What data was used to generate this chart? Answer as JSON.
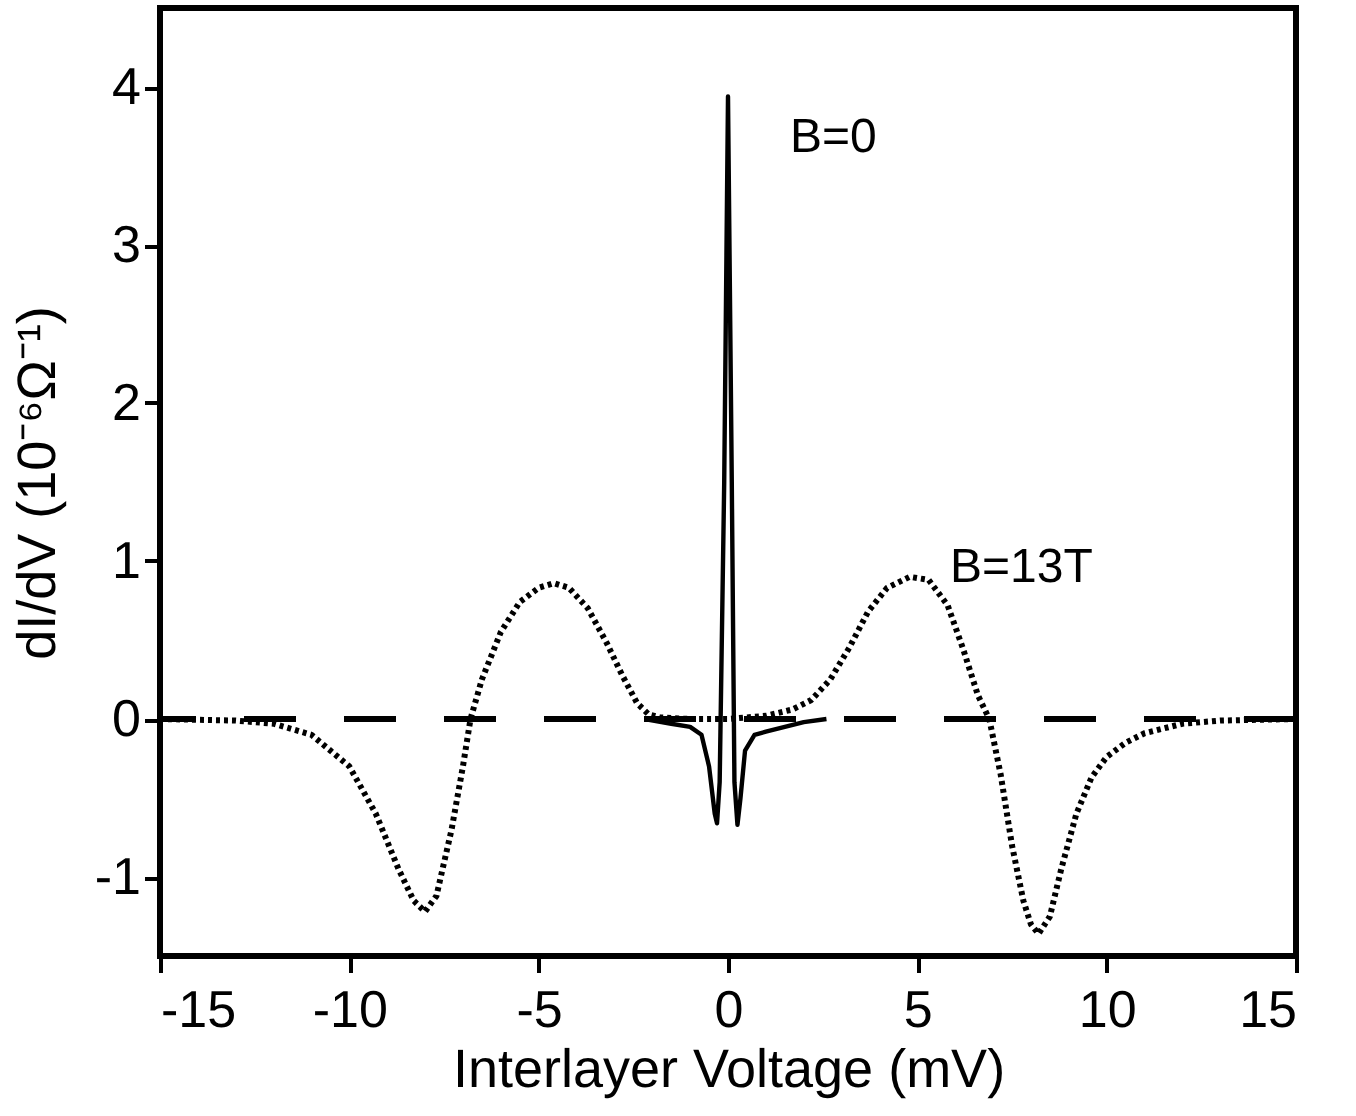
{
  "chart_data": {
    "type": "line",
    "xlabel": "Interlayer Voltage (mV)",
    "ylabel": "dI/dV   (10⁻⁶Ω⁻¹)",
    "xlim": [
      -15,
      15
    ],
    "xticks": [
      -15,
      -10,
      -5,
      0,
      5,
      10,
      15
    ],
    "ylim": [
      -1.5,
      4.5
    ],
    "yticks": [
      -1,
      0,
      1,
      2,
      3,
      4
    ],
    "grid": false,
    "marker": "none",
    "ref_lines": [
      {
        "axis": "y",
        "value": 0,
        "color": "#000000",
        "line_style": "dashed"
      }
    ],
    "series": [
      {
        "name": "B=13T",
        "color": "#000000",
        "line_style": "dotted",
        "x": [
          -15,
          -13,
          -12,
          -11,
          -10,
          -9.3,
          -8.7,
          -8.3,
          -8.0,
          -7.7,
          -7.3,
          -7.0,
          -6.8,
          -6.5,
          -6,
          -5.5,
          -5,
          -4.6,
          -4.2,
          -3.7,
          -3.2,
          -2.8,
          -2.4,
          -2.1,
          -1.8,
          -1,
          0,
          1,
          1.7,
          2.2,
          2.7,
          3.2,
          3.7,
          4.2,
          4.8,
          5.3,
          5.8,
          6.2,
          6.6,
          6.9,
          7.2,
          7.5,
          7.8,
          8.0,
          8.2,
          8.5,
          8.8,
          9.2,
          9.6,
          10,
          10.5,
          11,
          12,
          13,
          15
        ],
        "values": [
          0.0,
          -0.01,
          -0.03,
          -0.1,
          -0.3,
          -0.6,
          -0.95,
          -1.15,
          -1.22,
          -1.12,
          -0.7,
          -0.3,
          0.0,
          0.25,
          0.55,
          0.74,
          0.83,
          0.86,
          0.83,
          0.7,
          0.48,
          0.28,
          0.1,
          0.03,
          0.01,
          0.0,
          0.0,
          0.02,
          0.06,
          0.12,
          0.25,
          0.45,
          0.68,
          0.83,
          0.9,
          0.88,
          0.72,
          0.45,
          0.15,
          0.0,
          -0.35,
          -0.8,
          -1.15,
          -1.3,
          -1.36,
          -1.25,
          -0.95,
          -0.6,
          -0.37,
          -0.24,
          -0.15,
          -0.09,
          -0.03,
          -0.01,
          0.0
        ]
      },
      {
        "name": "B=0",
        "color": "#000000",
        "line_style": "solid",
        "x": [
          -2.2,
          -1.5,
          -1,
          -0.7,
          -0.5,
          -0.35,
          -0.29,
          -0.22,
          -0.1,
          0,
          0.1,
          0.17,
          0.25,
          0.33,
          0.45,
          0.7,
          1,
          1.5,
          2,
          2.6
        ],
        "values": [
          0.0,
          -0.03,
          -0.05,
          -0.1,
          -0.3,
          -0.6,
          -0.66,
          -0.4,
          1.5,
          3.94,
          1.5,
          -0.4,
          -0.67,
          -0.5,
          -0.2,
          -0.1,
          -0.08,
          -0.05,
          -0.02,
          0.0
        ]
      }
    ]
  }
}
